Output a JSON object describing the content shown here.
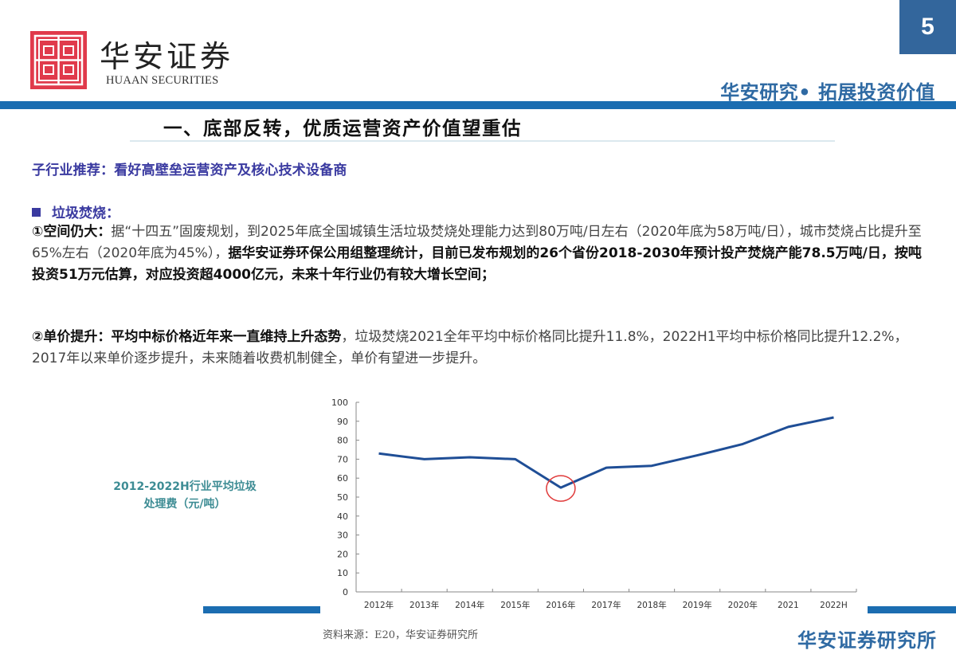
{
  "header": {
    "logo_cn": "华安证券",
    "logo_en": "HUAAN SECURITIES",
    "page_number": "5",
    "slogan": "华安研究• 拓展投资价值",
    "accent_color": "#1b6db1"
  },
  "section": {
    "title": "一、底部反转，优质运营资产价值望重估",
    "subheading": "子行业推荐：看好高壁垒运营资产及核心技术设备商"
  },
  "body": {
    "bullet_label": "垃圾焚烧：",
    "point1": {
      "lead": "①空间仍大：",
      "text_a": "据“十四五”固废规划，到2025年底全国城镇生活垃圾焚烧处理能力达到80万吨/日左右（2020年底为58万吨/日），城市焚烧占比提升至65%左右（2020年底为45%），",
      "text_b": "据华安证券环保公用组整理统计，目前已发布规划的26个省份2018-2030年预计投产焚烧产能78.5万吨/日，按吨投资51万元估算，对应投资超4000亿元，未来十年行业仍有较大增长空间；"
    },
    "point2": {
      "lead": "②单价提升：平均中标价格近年来一直维持上升态势",
      "text": "，垃圾焚烧2021全年平均中标价格同比提升11.8%，2022H1平均中标价格同比提升12.2%，2017年以来单价逐步提升，未来随着收费机制健全，单价有望进一步提升。"
    }
  },
  "chart_side_title": "2012-2022H行业平均垃圾处理费（元/吨）",
  "chart_data": {
    "type": "line",
    "title": "2012-2022H行业平均垃圾处理费（元/吨）",
    "categories": [
      "2012年",
      "2013年",
      "2014年",
      "2015年",
      "2016年",
      "2017年",
      "2018年",
      "2019年",
      "2020年",
      "2021",
      "2022H"
    ],
    "series": [
      {
        "name": "平均垃圾处理费",
        "values": [
          73,
          70,
          71,
          70,
          55,
          65.5,
          66.5,
          72,
          78,
          87,
          92
        ],
        "color": "#1f4e96"
      }
    ],
    "xlabel": "",
    "ylabel": "元/吨",
    "ylim": [
      0,
      100
    ],
    "yticks": [
      0,
      10,
      20,
      30,
      40,
      50,
      60,
      70,
      80,
      90,
      100
    ],
    "grid": false,
    "legend": "none",
    "annotations": [
      {
        "type": "circle",
        "category": "2016年",
        "color": "#e03a3a"
      }
    ]
  },
  "footer": {
    "source": "资料来源：E20，华安证券研究所",
    "brand": "华安证券研究所"
  }
}
